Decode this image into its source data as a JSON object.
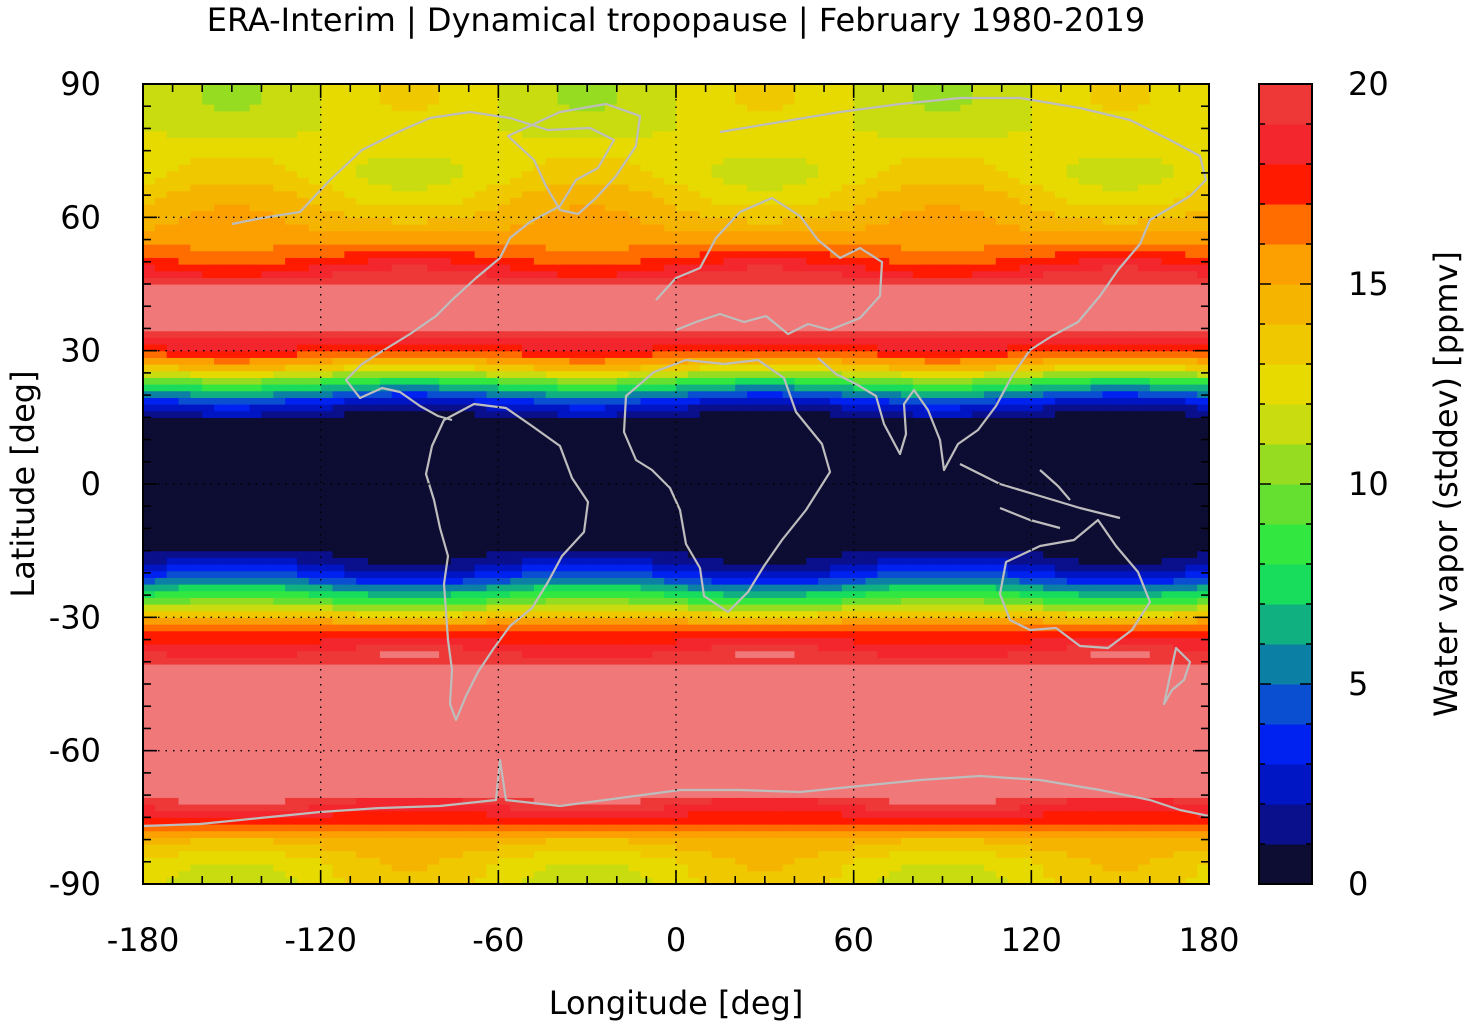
{
  "chart_data": {
    "type": "heatmap",
    "title": "ERA-Interim | Dynamical tropopause | February 1980-2019",
    "xlabel": "Longitude [deg]",
    "ylabel": "Latitude [deg]",
    "xlim": [
      -180,
      180
    ],
    "ylim": [
      -90,
      90
    ],
    "x_ticks": [
      "-180",
      "-120",
      "-60",
      "0",
      "60",
      "120",
      "180"
    ],
    "y_ticks": [
      "90",
      "60",
      "30",
      "0",
      "-30",
      "-60",
      "-90"
    ],
    "x_tick_values": [
      -180,
      -120,
      -60,
      0,
      60,
      120,
      180
    ],
    "y_tick_values": [
      90,
      60,
      30,
      0,
      -30,
      -60,
      -90
    ],
    "grid": true,
    "colorbar": {
      "label": "Water vapor (stddev) [ppmv]",
      "range": [
        0,
        20
      ],
      "ticks": [
        "0",
        "5",
        "10",
        "15",
        "20"
      ],
      "tick_values": [
        0,
        5,
        10,
        15,
        20
      ],
      "level_step": 1,
      "colors": [
        "#0d0c33",
        "#0a0f8c",
        "#0015c4",
        "#0022f0",
        "#0a4fd2",
        "#0c7fa4",
        "#10b080",
        "#18dd5c",
        "#32e840",
        "#66e030",
        "#96dc20",
        "#c8dc10",
        "#e6da00",
        "#f0c800",
        "#f5b400",
        "#fba000",
        "#ff6d00",
        "#ff1a00",
        "#f4262d",
        "#ee3838",
        "#f07878",
        "#ffcccc"
      ]
    },
    "lat_profile": {
      "lat": [
        -90,
        -85,
        -80,
        -75,
        -70,
        -65,
        -60,
        -50,
        -40,
        -34,
        -30,
        -27,
        -24,
        -21,
        -18,
        -15,
        -12,
        -10,
        -5,
        0,
        5,
        10,
        12,
        15,
        18,
        21,
        24,
        27,
        30,
        35,
        40,
        45,
        50,
        55,
        60,
        65,
        70,
        75,
        80,
        85,
        90
      ],
      "value": [
        12.5,
        13.0,
        14.5,
        17.8,
        20,
        20,
        20,
        20,
        20,
        17.5,
        14.5,
        10.0,
        7.0,
        4.0,
        2.0,
        0.8,
        0.3,
        0.1,
        0.0,
        0.0,
        0.0,
        0.1,
        0.3,
        1.0,
        2.5,
        6.0,
        10.0,
        14.5,
        17.5,
        20,
        20,
        20,
        17.5,
        15.5,
        14.5,
        13.5,
        12.5,
        12.5,
        12.0,
        12.0,
        12.0
      ]
    }
  }
}
